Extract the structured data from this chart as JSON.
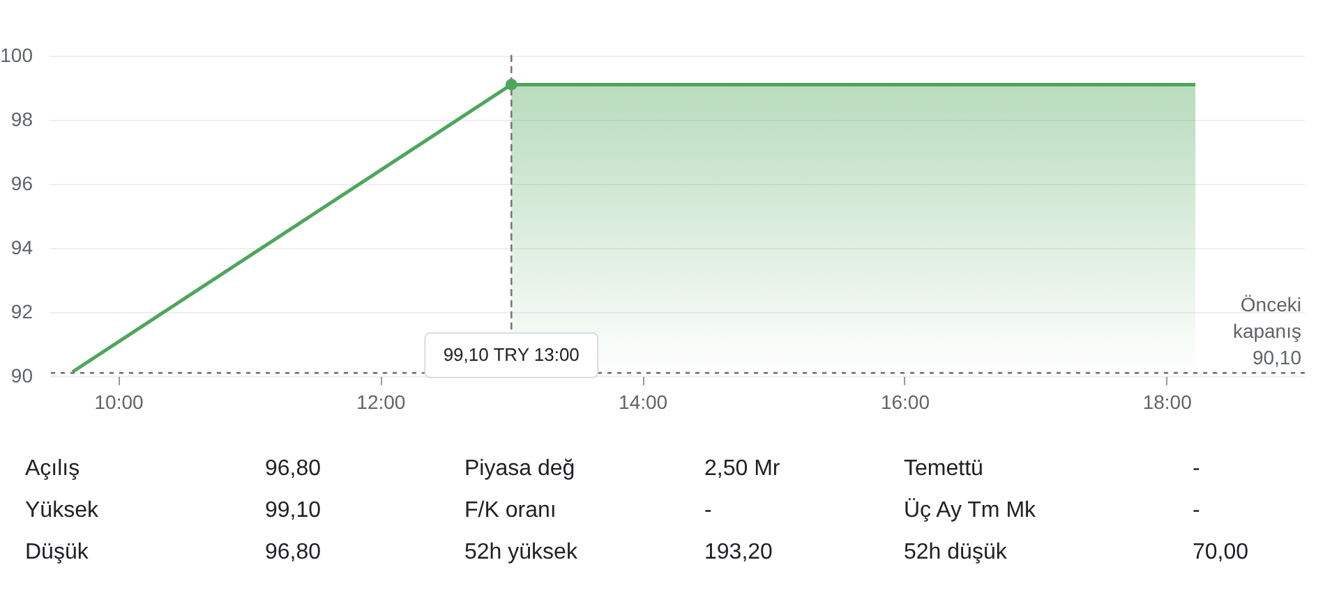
{
  "chart_data": {
    "type": "line",
    "xlim": [
      9.47,
      19.05
    ],
    "ylim": [
      90,
      100
    ],
    "xticks": [
      {
        "value": 10,
        "label": "10:00"
      },
      {
        "value": 12,
        "label": "12:00"
      },
      {
        "value": 14,
        "label": "14:00"
      },
      {
        "value": 16,
        "label": "16:00"
      },
      {
        "value": 18,
        "label": "18:00"
      }
    ],
    "yticks": [
      90,
      92,
      94,
      96,
      98,
      100
    ],
    "grid": "y",
    "series": [
      {
        "type": "line",
        "color": "#4ea65a",
        "x": [
          9.65,
          13.0,
          18.22
        ],
        "values": [
          90.13,
          99.1,
          99.1
        ]
      },
      {
        "type": "area",
        "color": "#4ea65a",
        "x": [
          13.0,
          18.22
        ],
        "values": [
          99.1,
          99.1
        ]
      },
      {
        "type": "scatter",
        "color": "#4ea65a",
        "x": [
          13.0
        ],
        "values": [
          99.1
        ]
      }
    ],
    "ref_lines": [
      {
        "axis": "y",
        "value": 90.1,
        "label": "Önceki kapanış 90,10",
        "line_style": "dotted",
        "color": "#777777"
      },
      {
        "axis": "x",
        "value": 13.0,
        "line_style": "dashed",
        "color": "#777777"
      }
    ],
    "annotations": [
      "Açılış",
      "96,80",
      "Piyasa değ",
      "2,50 Mr",
      "Temettü",
      "-",
      "Yüksek",
      "99,10",
      "F/K oranı",
      "-",
      "Üç Ay Tm Mk",
      "-",
      "Düşük",
      "96,80",
      "52h yüksek",
      "193,20",
      "52h düşük",
      "70,00",
      {
        "text": "99,10 TRY  13:00",
        "x": 13.0
      }
    ]
  }
}
